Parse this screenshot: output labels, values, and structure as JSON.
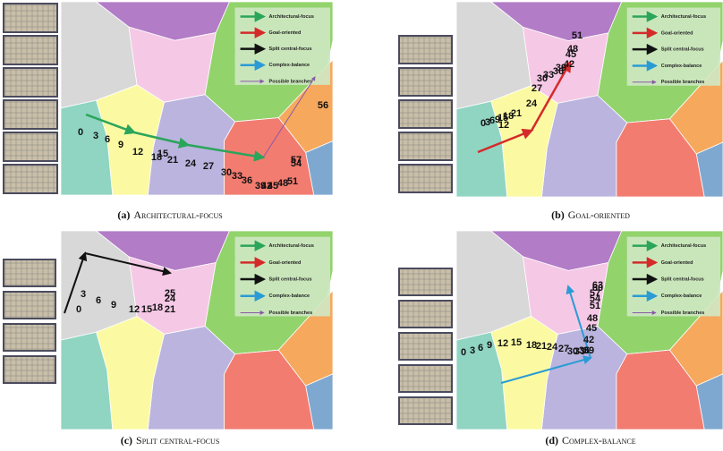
{
  "legend": [
    "Architectural-focus",
    "Goal-oriented",
    "Split central-focus",
    "Complex-balance",
    "Possible branches"
  ],
  "panels": [
    {
      "label": "(a)",
      "caption": "Architectural-focus",
      "numbers": [
        "0",
        "3",
        "6",
        "9",
        "12",
        "18",
        "15",
        "21",
        "24",
        "27",
        "30",
        "33",
        "36",
        "39",
        "42",
        "45",
        "48",
        "51",
        "54",
        "57",
        "56"
      ]
    },
    {
      "label": "(b)",
      "caption": "Goal-oriented",
      "numbers": [
        "0",
        "3",
        "6",
        "9",
        "15",
        "18",
        "12",
        "21",
        "24",
        "27",
        "30",
        "33",
        "36",
        "39",
        "42",
        "45",
        "48",
        "51"
      ]
    },
    {
      "label": "(c)",
      "caption": "Split central-focus",
      "numbers": [
        "0",
        "3",
        "6",
        "9",
        "12",
        "15",
        "18",
        "21",
        "24",
        "25"
      ]
    },
    {
      "label": "(d)",
      "caption": "Complex-balance",
      "numbers": [
        "0",
        "3",
        "6",
        "9",
        "12",
        "15",
        "18",
        "21",
        "24",
        "27",
        "30",
        "33",
        "36",
        "39",
        "42",
        "45",
        "48",
        "51",
        "54",
        "57",
        "60",
        "63"
      ]
    }
  ]
}
